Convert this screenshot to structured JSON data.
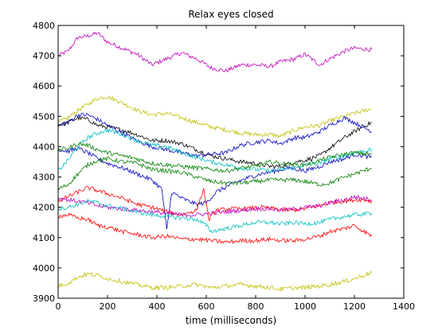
{
  "chart_data": {
    "type": "line",
    "title": "Relax eyes closed",
    "xlabel": "time (milliseconds)",
    "ylabel": "",
    "xlim": [
      0,
      1400
    ],
    "ylim": [
      3900,
      4800
    ],
    "xticks": [
      0,
      200,
      400,
      600,
      800,
      1000,
      1200,
      1400
    ],
    "yticks": [
      3900,
      4000,
      4100,
      4200,
      4300,
      4400,
      4500,
      4600,
      4700,
      4800
    ],
    "grid": false,
    "legend": "none",
    "series": [
      {
        "color": "#bf00bf",
        "x": [
          0,
          40,
          80,
          120,
          160,
          200,
          260,
          320,
          380,
          440,
          500,
          560,
          620,
          680,
          740,
          800,
          860,
          900,
          960,
          1000,
          1060,
          1100,
          1160,
          1200,
          1270
        ],
        "values": [
          4700,
          4715,
          4760,
          4765,
          4775,
          4745,
          4725,
          4705,
          4670,
          4690,
          4710,
          4690,
          4660,
          4650,
          4670,
          4670,
          4665,
          4680,
          4690,
          4705,
          4670,
          4690,
          4715,
          4725,
          4720
        ]
      },
      {
        "color": "#bfbf00",
        "x": [
          0,
          40,
          80,
          120,
          160,
          200,
          260,
          320,
          380,
          440,
          500,
          560,
          620,
          680,
          740,
          800,
          860,
          900,
          960,
          1000,
          1060,
          1100,
          1160,
          1200,
          1270
        ],
        "values": [
          4480,
          4495,
          4520,
          4540,
          4560,
          4565,
          4545,
          4520,
          4505,
          4510,
          4495,
          4480,
          4465,
          4455,
          4445,
          4440,
          4440,
          4435,
          4455,
          4465,
          4470,
          4485,
          4500,
          4510,
          4525
        ]
      },
      {
        "color": "#000000",
        "x": [
          0,
          40,
          80,
          120,
          160,
          200,
          260,
          320,
          380,
          440,
          500,
          560,
          620,
          680,
          740,
          800,
          860,
          900,
          960,
          1000,
          1060,
          1100,
          1160,
          1200,
          1270
        ],
        "values": [
          4470,
          4480,
          4495,
          4490,
          4470,
          4465,
          4455,
          4440,
          4420,
          4420,
          4410,
          4390,
          4370,
          4360,
          4350,
          4345,
          4335,
          4335,
          4350,
          4355,
          4370,
          4395,
          4430,
          4450,
          4480
        ]
      },
      {
        "color": "#0000bf",
        "x": [
          0,
          40,
          80,
          120,
          160,
          200,
          260,
          320,
          380,
          440,
          500,
          560,
          620,
          680,
          740,
          800,
          860,
          900,
          960,
          1000,
          1060,
          1100,
          1160,
          1200,
          1270
        ],
        "values": [
          4470,
          4480,
          4505,
          4505,
          4490,
          4470,
          4445,
          4420,
          4400,
          4390,
          4380,
          4370,
          4375,
          4380,
          4405,
          4415,
          4420,
          4410,
          4430,
          4430,
          4450,
          4470,
          4495,
          4480,
          4450
        ]
      },
      {
        "color": "#0000bf",
        "x": [
          0,
          40,
          80,
          120,
          160,
          200,
          260,
          320,
          380,
          420,
          440,
          460,
          500,
          560,
          600,
          640,
          700,
          760,
          820,
          880,
          940,
          1000,
          1060,
          1100,
          1160,
          1200,
          1270
        ],
        "values": [
          4390,
          4385,
          4395,
          4380,
          4360,
          4345,
          4330,
          4310,
          4290,
          4260,
          4125,
          4250,
          4230,
          4210,
          4215,
          4250,
          4275,
          4295,
          4310,
          4320,
          4330,
          4320,
          4335,
          4350,
          4360,
          4375,
          4365
        ]
      },
      {
        "color": "#00bfbf",
        "x": [
          0,
          40,
          80,
          120,
          160,
          200,
          260,
          320,
          380,
          440,
          500,
          560,
          620,
          680,
          740,
          800,
          860,
          900,
          960,
          1000,
          1060,
          1100,
          1160,
          1200,
          1270
        ],
        "values": [
          4320,
          4355,
          4400,
          4430,
          4445,
          4455,
          4440,
          4420,
          4405,
          4400,
          4380,
          4365,
          4350,
          4340,
          4330,
          4325,
          4320,
          4325,
          4330,
          4340,
          4345,
          4360,
          4370,
          4380,
          4390
        ]
      },
      {
        "color": "#007f00",
        "x": [
          0,
          40,
          80,
          120,
          160,
          200,
          260,
          320,
          380,
          440,
          500,
          560,
          620,
          680,
          740,
          800,
          860,
          900,
          960,
          1000,
          1060,
          1100,
          1160,
          1200,
          1270
        ],
        "values": [
          4390,
          4395,
          4410,
          4405,
          4390,
          4380,
          4370,
          4360,
          4345,
          4340,
          4335,
          4330,
          4325,
          4320,
          4330,
          4335,
          4350,
          4345,
          4340,
          4340,
          4355,
          4365,
          4375,
          4380,
          4375
        ]
      },
      {
        "color": "#007f00",
        "x": [
          0,
          40,
          80,
          120,
          160,
          200,
          260,
          320,
          380,
          440,
          500,
          560,
          620,
          680,
          740,
          800,
          860,
          900,
          960,
          1000,
          1060,
          1100,
          1160,
          1200,
          1270
        ],
        "values": [
          4260,
          4275,
          4310,
          4340,
          4355,
          4360,
          4350,
          4345,
          4325,
          4320,
          4315,
          4300,
          4285,
          4280,
          4280,
          4285,
          4290,
          4290,
          4290,
          4285,
          4275,
          4280,
          4300,
          4310,
          4330
        ]
      },
      {
        "color": "#ff0000",
        "x": [
          0,
          40,
          80,
          120,
          160,
          200,
          260,
          320,
          380,
          440,
          500,
          560,
          590,
          610,
          640,
          700,
          760,
          820,
          880,
          940,
          1000,
          1060,
          1100,
          1160,
          1200,
          1240,
          1270
        ],
        "values": [
          4220,
          4235,
          4250,
          4265,
          4255,
          4245,
          4230,
          4210,
          4200,
          4185,
          4175,
          4190,
          4260,
          4160,
          4190,
          4195,
          4195,
          4200,
          4195,
          4190,
          4195,
          4205,
          4215,
          4220,
          4225,
          4225,
          4220
        ]
      },
      {
        "color": "#bf00bf",
        "x": [
          0,
          40,
          80,
          120,
          160,
          200,
          260,
          320,
          380,
          440,
          500,
          560,
          620,
          680,
          740,
          800,
          860,
          900,
          960,
          1000,
          1060,
          1100,
          1160,
          1200,
          1270
        ],
        "values": [
          4230,
          4225,
          4220,
          4215,
          4205,
          4200,
          4195,
          4190,
          4185,
          4180,
          4175,
          4175,
          4180,
          4185,
          4190,
          4195,
          4195,
          4190,
          4195,
          4200,
          4205,
          4215,
          4225,
          4235,
          4225
        ]
      },
      {
        "color": "#00bfbf",
        "x": [
          0,
          40,
          80,
          120,
          160,
          200,
          260,
          320,
          380,
          440,
          500,
          560,
          600,
          620,
          680,
          740,
          800,
          860,
          900,
          960,
          1000,
          1060,
          1100,
          1160,
          1200,
          1270
        ],
        "values": [
          4195,
          4200,
          4210,
          4220,
          4215,
          4205,
          4195,
          4185,
          4175,
          4170,
          4165,
          4160,
          4140,
          4120,
          4130,
          4140,
          4150,
          4150,
          4145,
          4150,
          4145,
          4150,
          4160,
          4170,
          4175,
          4180
        ]
      },
      {
        "color": "#ff0000",
        "x": [
          0,
          40,
          80,
          120,
          160,
          200,
          260,
          320,
          380,
          440,
          500,
          560,
          620,
          680,
          740,
          800,
          860,
          900,
          960,
          1000,
          1060,
          1100,
          1160,
          1200,
          1240,
          1270
        ],
        "values": [
          4170,
          4175,
          4165,
          4160,
          4140,
          4135,
          4120,
          4110,
          4100,
          4105,
          4095,
          4095,
          4090,
          4085,
          4090,
          4090,
          4095,
          4090,
          4090,
          4095,
          4105,
          4120,
          4130,
          4140,
          4120,
          4105
        ]
      },
      {
        "color": "#bfbf00",
        "x": [
          0,
          40,
          80,
          120,
          160,
          200,
          260,
          320,
          380,
          440,
          500,
          560,
          620,
          680,
          740,
          800,
          860,
          900,
          960,
          1000,
          1060,
          1100,
          1160,
          1200,
          1270
        ],
        "values": [
          3940,
          3950,
          3970,
          3980,
          3975,
          3965,
          3955,
          3945,
          3935,
          3935,
          3940,
          3945,
          3935,
          3940,
          3945,
          3940,
          3935,
          3930,
          3935,
          3935,
          3940,
          3945,
          3955,
          3965,
          3985
        ]
      }
    ]
  }
}
